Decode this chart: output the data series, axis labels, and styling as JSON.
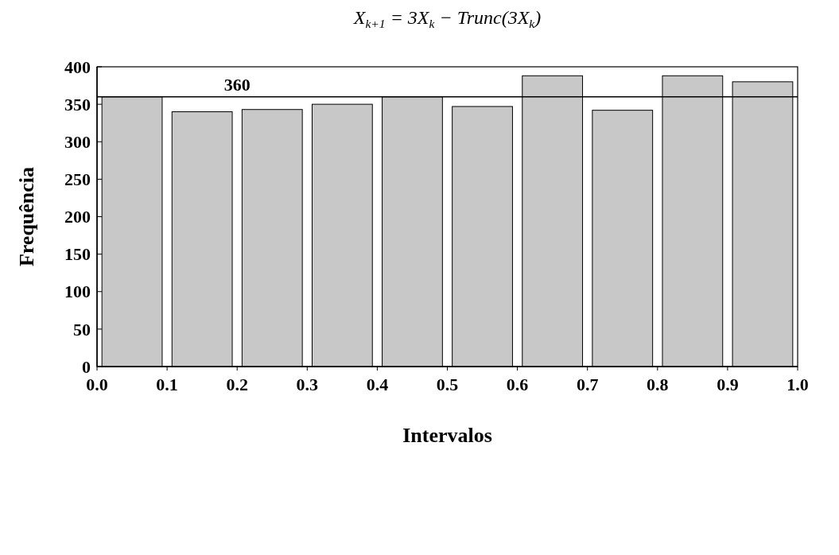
{
  "chart_data": {
    "type": "histogram",
    "title": "X$_{k+1}$ = 3X$_{k}$ − Trunc(3X$_{k}$)",
    "xlabel": "Intervalos",
    "ylabel": "Frequência",
    "bins": [
      0,
      0.1,
      0.2,
      0.3,
      0.4,
      0.5,
      0.6,
      0.7,
      0.8,
      0.9,
      1.0
    ],
    "values": [
      360,
      340,
      343,
      350,
      360,
      347,
      388,
      342,
      388,
      380
    ],
    "color": "#c8c8c8",
    "xlim": [
      0,
      1
    ],
    "xticks": [
      {
        "value": 0,
        "label": "0.0"
      },
      {
        "value": 0.1,
        "label": "0.1"
      },
      {
        "value": 0.2,
        "label": "0.2"
      },
      {
        "value": 0.3,
        "label": "0.3"
      },
      {
        "value": 0.4,
        "label": "0.4"
      },
      {
        "value": 0.5,
        "label": "0.5"
      },
      {
        "value": 0.6,
        "label": "0.6"
      },
      {
        "value": 0.7,
        "label": "0.7"
      },
      {
        "value": 0.8,
        "label": "0.8"
      },
      {
        "value": 0.9,
        "label": "0.9"
      },
      {
        "value": 1,
        "label": "1.0"
      }
    ],
    "ylim": [
      0,
      400
    ],
    "yticks": [
      0,
      50,
      100,
      150,
      200,
      250,
      300,
      350,
      400
    ],
    "ref_lines": [
      {
        "axis": "y",
        "value": 360,
        "label": "360",
        "color": "#000000"
      }
    ]
  }
}
